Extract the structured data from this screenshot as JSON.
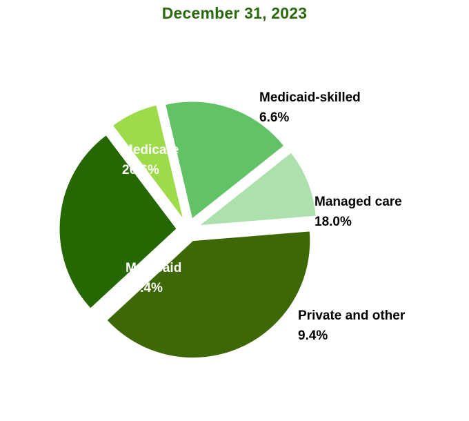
{
  "chart_data": {
    "type": "pie",
    "title": "December 31, 2023",
    "slices": [
      {
        "name": "Medicaid-skilled",
        "value": 6.6,
        "label": "6.6%",
        "color": "#9edb4a",
        "label_color": "#000000",
        "label_side": "outside"
      },
      {
        "name": "Managed care",
        "value": 18.0,
        "label": "18.0%",
        "color": "#62c266",
        "label_color": "#000000",
        "label_side": "outside"
      },
      {
        "name": "Private and other",
        "value": 9.4,
        "label": "9.4%",
        "color": "#ace0ad",
        "label_color": "#000000",
        "label_side": "outside"
      },
      {
        "name": "Medicaid",
        "value": 39.4,
        "label": "39.4%",
        "color": "#3e6805",
        "label_color": "#ffffff",
        "label_side": "inside"
      },
      {
        "name": "Medicare",
        "value": 26.6,
        "label": "26.6%",
        "color": "#256801",
        "label_color": "#ffffff",
        "label_side": "inside"
      }
    ],
    "exploded": true
  }
}
